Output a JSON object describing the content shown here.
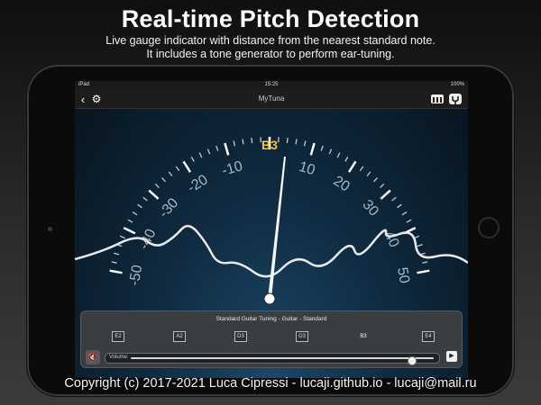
{
  "header": {
    "title": "Real-time Pitch Detection",
    "subtitle_line1": "Live gauge indicator with distance from the nearest standard note.",
    "subtitle_line2": "It includes a tone generator to perform ear-tuning."
  },
  "status_bar": {
    "carrier": "iPad",
    "time": "15:25",
    "battery": "100%"
  },
  "app": {
    "title": "MyTuna",
    "back_icon": "chevron-left-icon",
    "settings_icon": "gear-icon",
    "piano_icon": "piano-icon",
    "tuning_fork_icon": "tuning-fork-icon"
  },
  "gauge": {
    "detected_note": "B3",
    "needle_cents": 0,
    "scale_labels": [
      "-50",
      "-40",
      "-30",
      "-20",
      "-10",
      "10",
      "20",
      "30",
      "40",
      "50"
    ],
    "note_color": "#f7c325",
    "accent_color": "#2c5f86"
  },
  "tuning_panel": {
    "title": "Standard Guitar Tuning - Guitar - Standard",
    "notes": [
      "E2",
      "A2",
      "D3",
      "G3",
      "B3",
      "E4"
    ],
    "active_note": "B3"
  },
  "volume": {
    "label": "Volume:",
    "level": 0.93
  },
  "footer": {
    "copyright": "Copyright (c) 2017-2021 Luca Cipressi - lucaji.github.io - lucaji@mail.ru"
  }
}
